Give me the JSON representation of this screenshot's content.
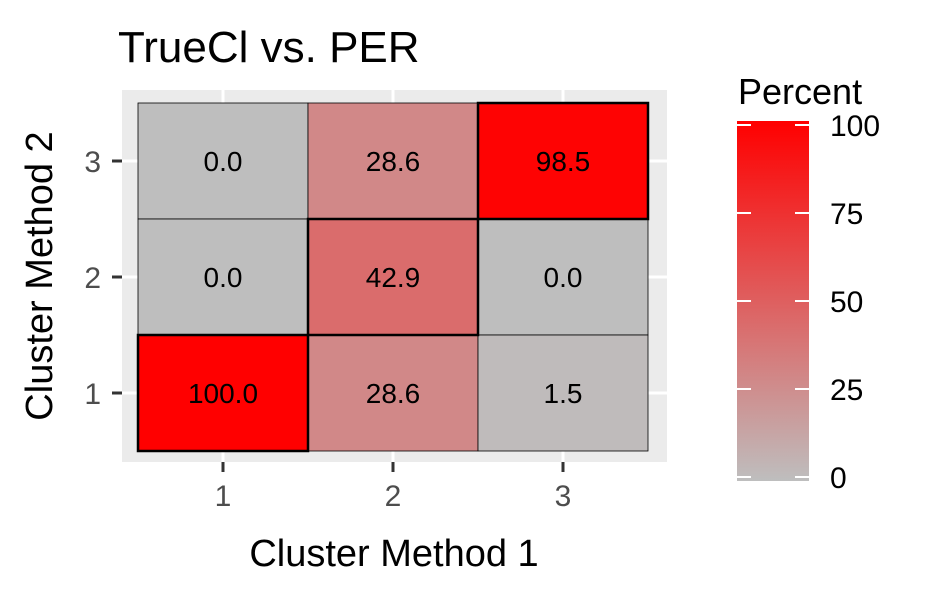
{
  "chart_data": {
    "type": "heatmap",
    "title": "TrueCl vs. PER",
    "xlabel": "Cluster Method 1",
    "ylabel": "Cluster Method 2",
    "x_categories": [
      "1",
      "2",
      "3"
    ],
    "y_categories": [
      "1",
      "2",
      "3"
    ],
    "cells": [
      {
        "x": "1",
        "y": "3",
        "value": 0.0,
        "label": "0.0",
        "highlight": false
      },
      {
        "x": "2",
        "y": "3",
        "value": 28.6,
        "label": "28.6",
        "highlight": false
      },
      {
        "x": "3",
        "y": "3",
        "value": 98.5,
        "label": "98.5",
        "highlight": true
      },
      {
        "x": "1",
        "y": "2",
        "value": 0.0,
        "label": "0.0",
        "highlight": false
      },
      {
        "x": "2",
        "y": "2",
        "value": 42.9,
        "label": "42.9",
        "highlight": true
      },
      {
        "x": "3",
        "y": "2",
        "value": 0.0,
        "label": "0.0",
        "highlight": false
      },
      {
        "x": "1",
        "y": "1",
        "value": 100.0,
        "label": "100.0",
        "highlight": true
      },
      {
        "x": "2",
        "y": "1",
        "value": 28.6,
        "label": "28.6",
        "highlight": false
      },
      {
        "x": "3",
        "y": "1",
        "value": 1.5,
        "label": "1.5",
        "highlight": false
      }
    ],
    "color_scale": {
      "low": "#bebebe",
      "high": "#ff0000",
      "range": [
        0,
        100
      ]
    },
    "legend": {
      "title": "Percent",
      "ticks": [
        0,
        25,
        50,
        75,
        100
      ],
      "tick_labels": [
        "0",
        "25",
        "50",
        "75",
        "100"
      ],
      "position": "right"
    },
    "grid": true
  }
}
